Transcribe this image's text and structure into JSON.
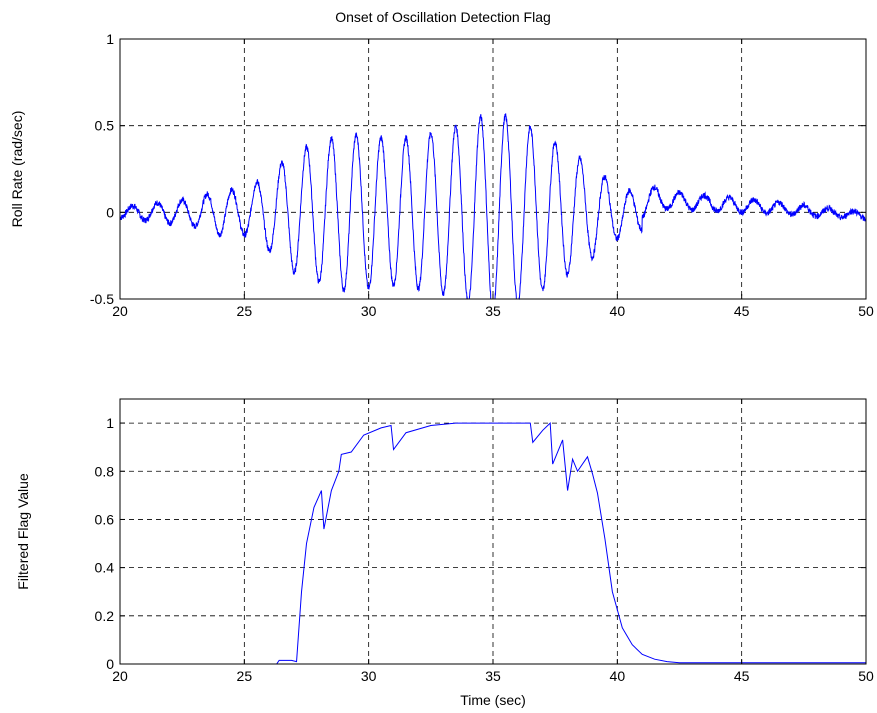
{
  "figure": {
    "title": "Onset of Oscillation Detection Flag",
    "line_color": "#0000ff",
    "grid_color": "#000000"
  },
  "chart_data": [
    {
      "type": "line",
      "title": "Onset of Oscillation Detection Flag",
      "xlabel": "",
      "ylabel": "Roll Rate (rad/sec)",
      "xlim": [
        20,
        50
      ],
      "ylim": [
        -0.5,
        1
      ],
      "xticks": [
        "20",
        "25",
        "30",
        "35",
        "40",
        "45",
        "50"
      ],
      "yticks": [
        "-0.5",
        "0",
        "0.5",
        "1"
      ],
      "grid": true,
      "envelope": {
        "t": [
          20,
          23,
          24,
          25,
          26,
          27,
          28,
          29,
          30,
          31,
          32,
          33,
          34,
          35,
          36,
          37,
          38,
          39,
          40,
          41,
          42,
          50
        ],
        "amp": [
          0.03,
          0.08,
          0.13,
          0.13,
          0.22,
          0.35,
          0.4,
          0.45,
          0.44,
          0.42,
          0.44,
          0.47,
          0.52,
          0.58,
          0.53,
          0.45,
          0.36,
          0.26,
          0.15,
          0.1,
          0.05,
          0.02
        ]
      },
      "oscillation_period_sec": 1.0,
      "drift": [
        {
          "x": 42,
          "y": 0.07
        },
        {
          "x": 46,
          "y": 0.03
        },
        {
          "x": 50,
          "y": -0.02
        }
      ]
    },
    {
      "type": "line",
      "title": "",
      "xlabel": "Time (sec)",
      "ylabel": "Filtered Flag Value",
      "xlim": [
        20,
        50
      ],
      "ylim": [
        0,
        1.1
      ],
      "xticks": [
        "20",
        "25",
        "30",
        "35",
        "40",
        "45",
        "50"
      ],
      "yticks": [
        "0",
        "0.2",
        "0.4",
        "0.6",
        "0.8",
        "1"
      ],
      "grid": true,
      "series": [
        {
          "x": [
            20,
            26.3,
            26.4,
            26.9,
            27.1,
            27.3,
            27.5,
            27.8,
            28.1,
            28.2,
            28.5,
            28.8,
            28.9,
            29.3,
            29.8,
            30.5,
            30.9,
            31.0,
            31.5,
            32.5,
            33.5,
            35.0,
            36.5,
            36.6,
            37.0,
            37.3,
            37.4,
            37.8,
            38.0,
            38.2,
            38.4,
            38.8,
            39.0,
            39.2,
            39.5,
            39.8,
            40.2,
            40.6,
            41.0,
            41.5,
            42.0,
            42.5,
            43.0,
            50
          ],
          "y": [
            0,
            0,
            0.015,
            0.015,
            0.01,
            0.3,
            0.5,
            0.65,
            0.72,
            0.56,
            0.72,
            0.8,
            0.87,
            0.88,
            0.95,
            0.98,
            0.99,
            0.89,
            0.96,
            0.99,
            1.0,
            1.0,
            1.0,
            0.92,
            0.97,
            1.0,
            0.83,
            0.93,
            0.72,
            0.85,
            0.8,
            0.86,
            0.79,
            0.71,
            0.52,
            0.3,
            0.15,
            0.08,
            0.04,
            0.02,
            0.01,
            0.005,
            0.005,
            0.005
          ]
        }
      ]
    }
  ]
}
